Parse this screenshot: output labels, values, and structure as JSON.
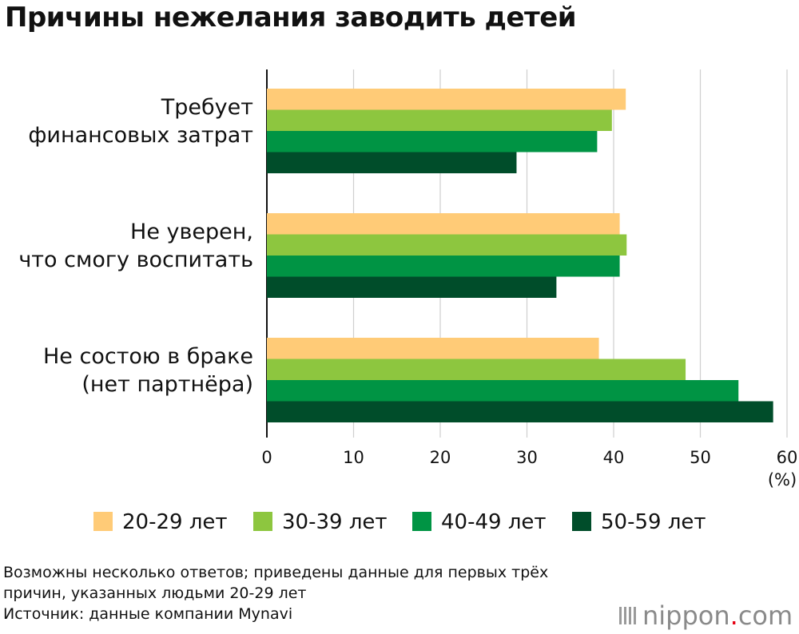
{
  "title": "Причины нежелания заводить детей",
  "chart_data": {
    "type": "bar",
    "orientation": "horizontal",
    "title": "Причины нежелания заводить детей",
    "categories": [
      [
        "Требует",
        "финансовых затрат"
      ],
      [
        "Не уверен,",
        "что смогу воспитать"
      ],
      [
        "Не состою в браке",
        "(нет партнёра)"
      ]
    ],
    "series": [
      {
        "name": "20-29 лет",
        "color": "#ffcb77",
        "values": [
          41.4,
          40.7,
          38.3
        ]
      },
      {
        "name": "30-39 лет",
        "color": "#8dc63f",
        "values": [
          39.8,
          41.5,
          48.3
        ]
      },
      {
        "name": "40-49 лет",
        "color": "#009444",
        "values": [
          38.1,
          40.7,
          54.4
        ]
      },
      {
        "name": "50-59 лет",
        "color": "#004d2a",
        "values": [
          28.8,
          33.4,
          58.4
        ]
      }
    ],
    "xlim": [
      0,
      60
    ],
    "xticks": [
      0,
      10,
      20,
      30,
      40,
      50,
      60
    ],
    "xunit": "(%)",
    "grid": true,
    "legend": "bottom"
  },
  "footnotes": [
    "Возможны несколько ответов; приведены данные для первых трёх",
    "причин, указанных людьми 20-29 лет",
    "Источник: данные компании Mynavi"
  ],
  "logo": {
    "name": "nippon",
    "dot": ".",
    "tld": "com"
  }
}
